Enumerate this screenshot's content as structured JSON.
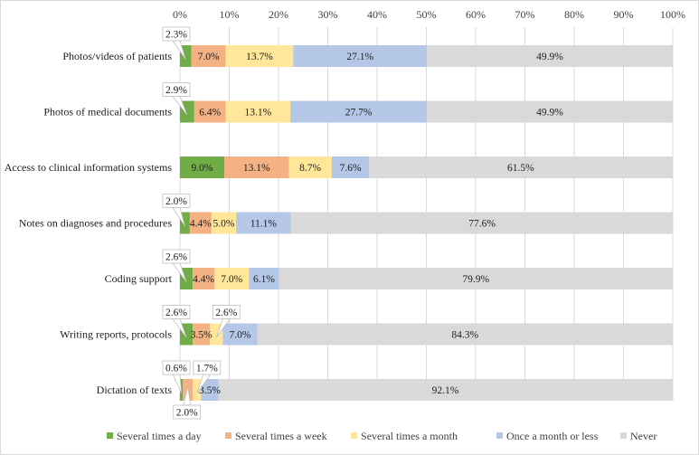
{
  "chart_data": {
    "type": "bar",
    "orientation": "horizontal",
    "stacked": "percent",
    "title": "",
    "xlabel": "",
    "ylabel": "",
    "xlim": [
      0,
      100
    ],
    "x_ticks": [
      "0%",
      "10%",
      "20%",
      "30%",
      "40%",
      "50%",
      "60%",
      "70%",
      "80%",
      "90%",
      "100%"
    ],
    "grid": true,
    "legend_position": "bottom",
    "categories": [
      "Photos/videos of patients",
      "Photos of medical documents",
      "Access to clinical information systems",
      "Notes on diagnoses and procedures",
      "Coding support",
      "Writing reports, protocols",
      "Dictation of texts"
    ],
    "series": [
      {
        "name": "Several times a day",
        "color": "#70ad47",
        "values": [
          2.3,
          2.9,
          9.0,
          2.0,
          2.6,
          2.6,
          0.6
        ],
        "labels": [
          "2.3%",
          "2.9%",
          "9.0%",
          "2.0%",
          "2.6%",
          "2.6%",
          "0.6%"
        ]
      },
      {
        "name": "Several times a week",
        "color": "#f4b183",
        "values": [
          7.0,
          6.4,
          13.1,
          4.4,
          4.4,
          3.5,
          2.0
        ],
        "labels": [
          "7.0%",
          "6.4%",
          "13.1%",
          "4.4%",
          "4.4%",
          "3.5%",
          "2.0%"
        ]
      },
      {
        "name": "Several times a month",
        "color": "#ffe699",
        "values": [
          13.7,
          13.1,
          8.7,
          5.0,
          7.0,
          2.6,
          1.7
        ],
        "labels": [
          "13.7%",
          "13.1%",
          "8.7%",
          "5.0%",
          "7.0%",
          "2.6%",
          "1.7%"
        ]
      },
      {
        "name": "Once a month or less",
        "color": "#b4c7e7",
        "values": [
          27.1,
          27.7,
          7.6,
          11.1,
          6.1,
          7.0,
          3.5
        ],
        "labels": [
          "27.1%",
          "27.7%",
          "7.6%",
          "11.1%",
          "6.1%",
          "7.0%",
          "3.5%"
        ]
      },
      {
        "name": "Never",
        "color": "#d9d9d9",
        "values": [
          49.9,
          49.9,
          61.5,
          77.6,
          79.9,
          84.3,
          92.1
        ],
        "labels": [
          "49.9%",
          "49.9%",
          "61.5%",
          "77.6%",
          "79.9%",
          "84.3%",
          "92.1%"
        ]
      }
    ]
  }
}
